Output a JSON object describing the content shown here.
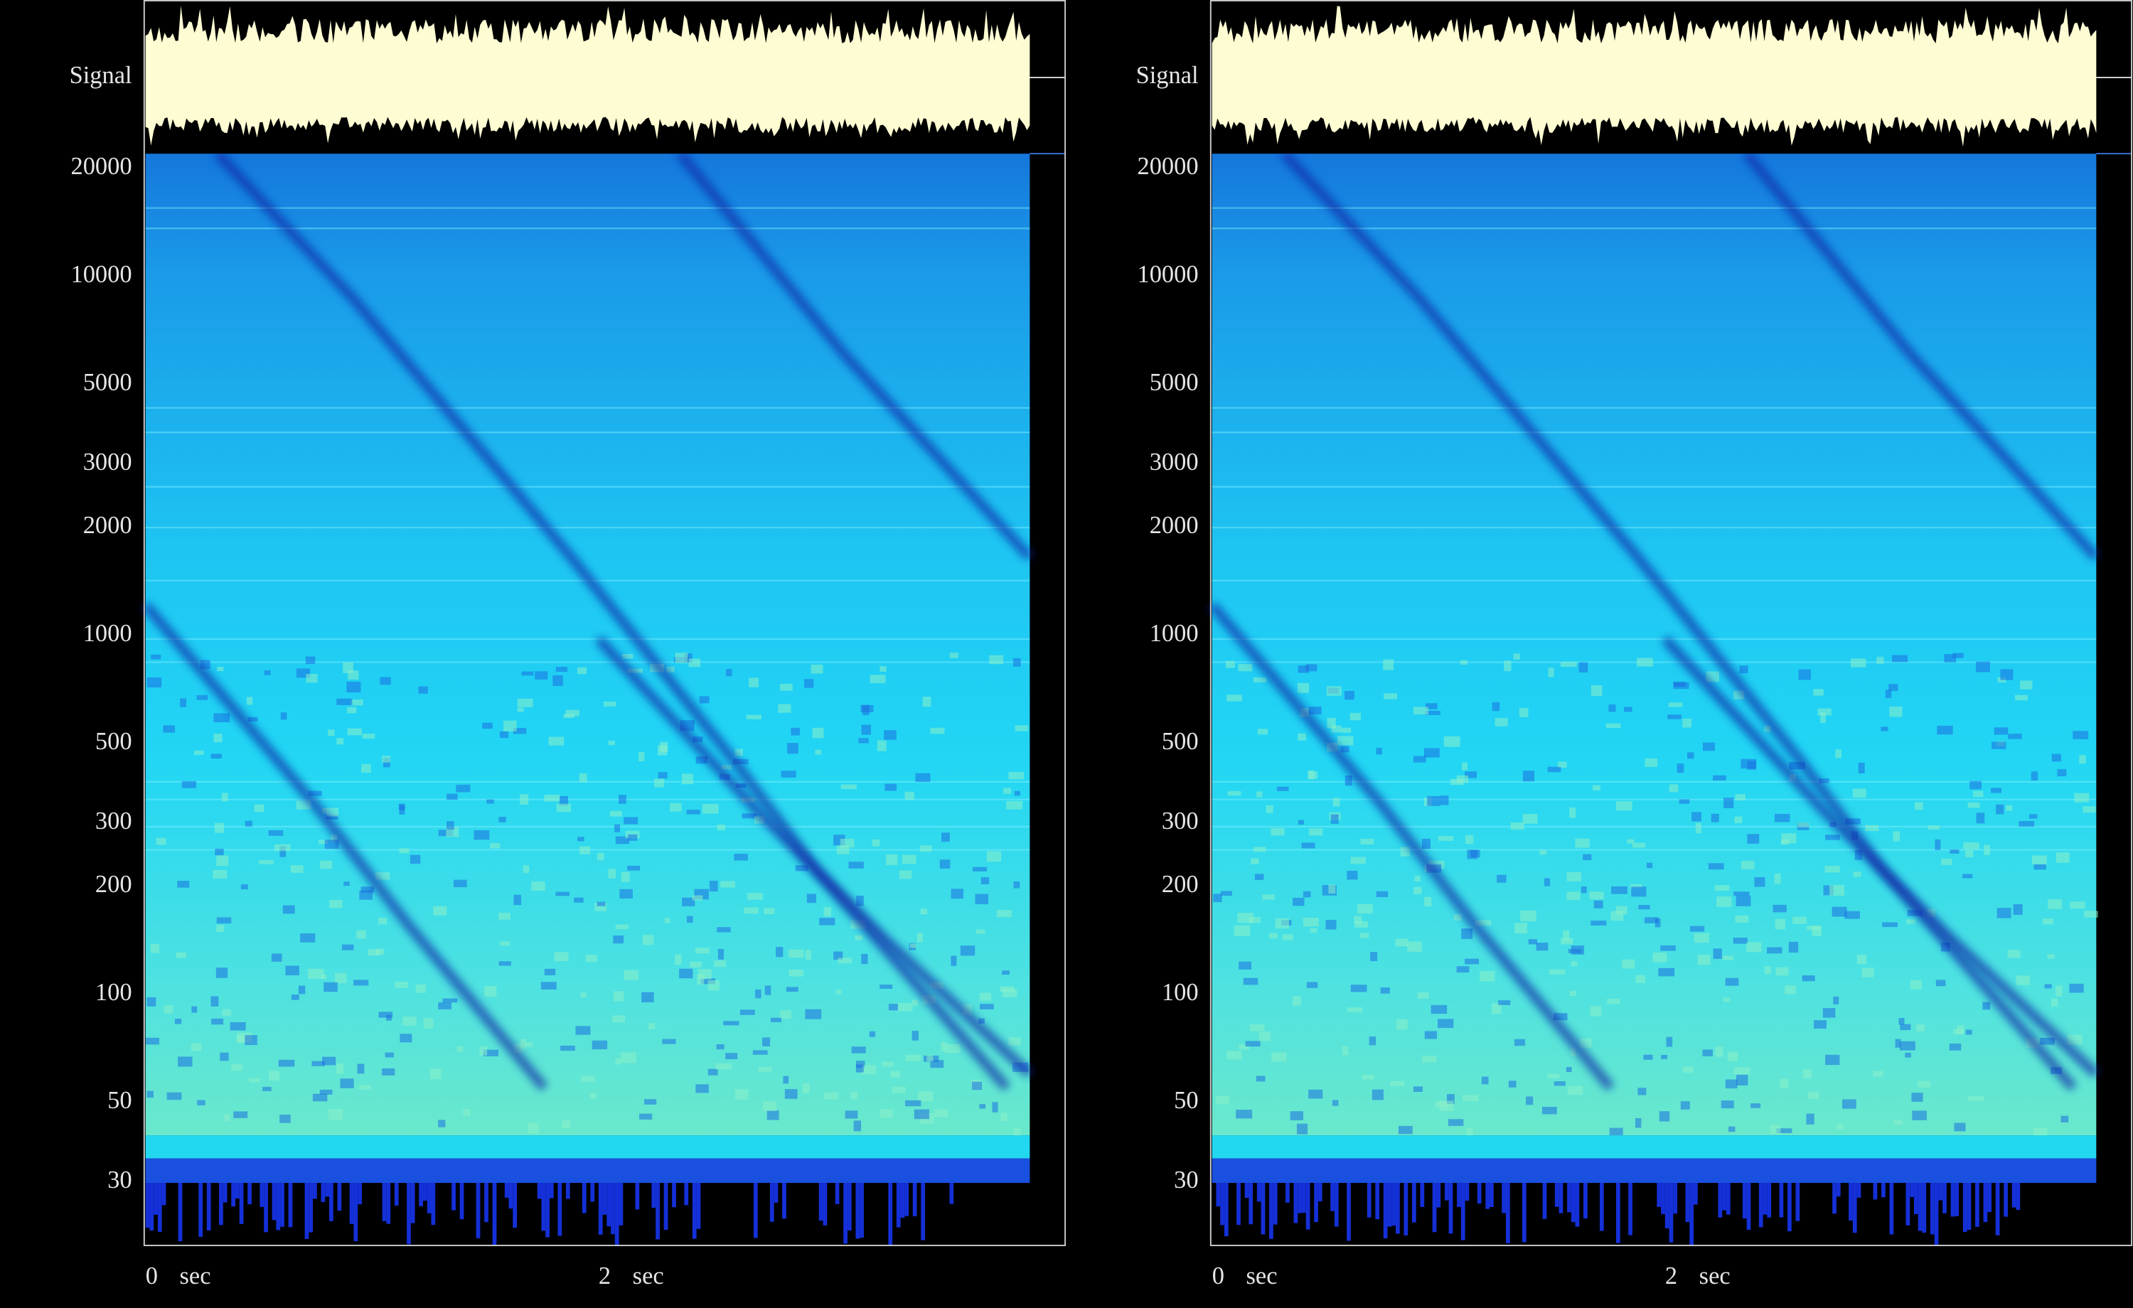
{
  "panels": [
    {
      "signal_label": "Signal",
      "yaxis": {
        "scale": "log",
        "lim": [
          20,
          22000
        ],
        "ticks": [
          20000,
          10000,
          5000,
          3000,
          2000,
          1000,
          500,
          300,
          200,
          100,
          50,
          30
        ]
      },
      "xaxis": {
        "lim": [
          0,
          4.06
        ],
        "ticks": [
          0,
          2
        ],
        "unit": "sec"
      }
    },
    {
      "signal_label": "Signal",
      "yaxis": {
        "scale": "log",
        "lim": [
          20,
          22000
        ],
        "ticks": [
          20000,
          10000,
          5000,
          3000,
          2000,
          1000,
          500,
          300,
          200,
          100,
          50,
          30
        ]
      },
      "xaxis": {
        "lim": [
          0,
          4.06
        ],
        "ticks": [
          0,
          2
        ],
        "unit": "sec"
      }
    }
  ]
}
